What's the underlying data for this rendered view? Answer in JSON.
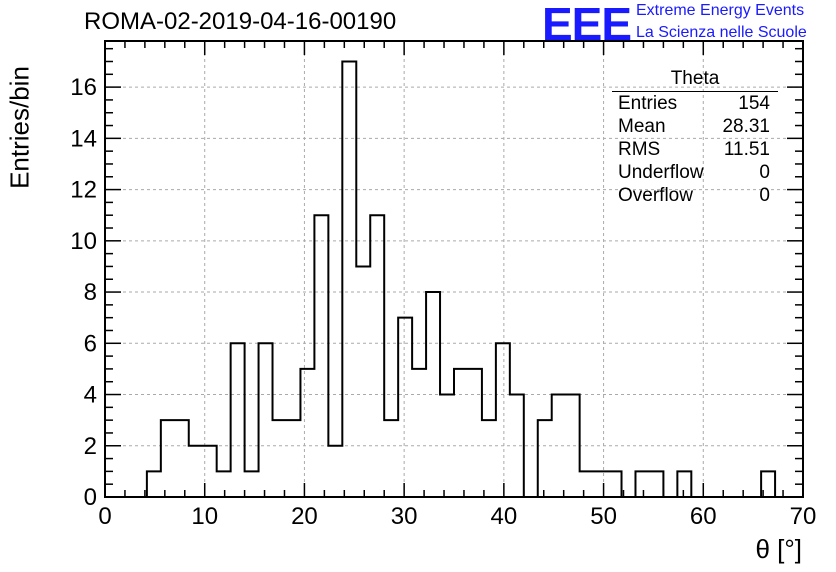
{
  "header": {
    "title": "ROMA-02-2019-04-16-00190",
    "logo": "EEE",
    "logo_line1": "Extreme Energy Events",
    "logo_line2": "La Scienza nelle Scuole"
  },
  "stats": {
    "name": "Theta",
    "rows": [
      {
        "label": "Entries",
        "value": "154"
      },
      {
        "label": "Mean",
        "value": "28.31"
      },
      {
        "label": "RMS",
        "value": "11.51"
      },
      {
        "label": "Underflow",
        "value": "0"
      },
      {
        "label": "Overflow",
        "value": "0"
      }
    ]
  },
  "chart_data": {
    "type": "histogram",
    "xlabel": "θ [°]",
    "ylabel": "Entries/bin",
    "xlim": [
      0,
      70
    ],
    "ylim": [
      0,
      17.8
    ],
    "bin_width": 1.4,
    "x_ticks": [
      0,
      10,
      20,
      30,
      40,
      50,
      60,
      70
    ],
    "y_ticks": [
      0,
      2,
      4,
      6,
      8,
      10,
      12,
      14,
      16
    ],
    "grid": true,
    "line_color": "#000000",
    "bin_lower_edges": [
      0,
      1.4,
      2.8,
      4.2,
      5.6,
      7.0,
      8.4,
      9.8,
      11.2,
      12.6,
      14.0,
      15.4,
      16.8,
      18.2,
      19.6,
      21.0,
      22.4,
      23.8,
      25.2,
      26.6,
      28.0,
      29.4,
      30.8,
      32.2,
      33.6,
      35.0,
      36.4,
      37.8,
      39.2,
      40.6,
      42.0,
      43.4,
      44.8,
      46.2,
      47.6,
      49.0,
      50.4,
      51.8,
      53.2,
      54.6,
      56.0,
      57.4,
      58.8,
      60.2,
      61.6,
      63.0,
      64.4,
      65.8,
      67.2,
      68.6
    ],
    "values": [
      0,
      0,
      0,
      1,
      3,
      3,
      2,
      2,
      1,
      6,
      1,
      6,
      3,
      3,
      5,
      11,
      2,
      17,
      9,
      11,
      3,
      7,
      5,
      8,
      4,
      5,
      5,
      3,
      6,
      4,
      0,
      3,
      4,
      4,
      1,
      1,
      1,
      0,
      1,
      1,
      0,
      1,
      0,
      0,
      0,
      0,
      0,
      1,
      0,
      0
    ]
  }
}
